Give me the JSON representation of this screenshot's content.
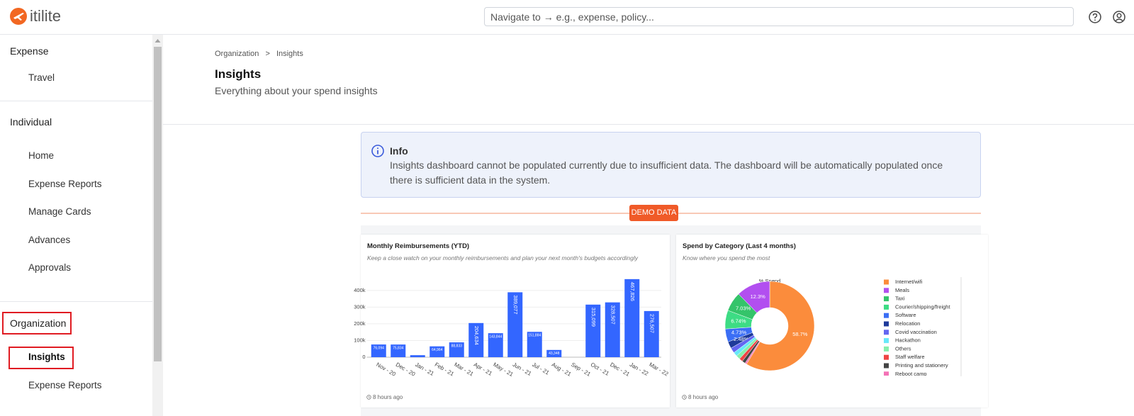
{
  "header": {
    "logo": "itilite",
    "search_placeholder": "Navigate to → e.g., expense, policy..."
  },
  "sidebar": {
    "sections": [
      {
        "title": "Expense",
        "items": [
          "Travel"
        ]
      },
      {
        "title": "Individual",
        "items": [
          "Home",
          "Expense Reports",
          "Manage Cards",
          "Advances",
          "Approvals"
        ]
      },
      {
        "title": "Organization",
        "items": [
          "Insights",
          "Expense Reports"
        ]
      }
    ]
  },
  "page": {
    "breadcrumb": [
      "Organization",
      "Insights"
    ],
    "breadcrumb_separator": ">",
    "title": "Insights",
    "subtitle": "Everything about your spend insights"
  },
  "info": {
    "title": "Info",
    "text": "Insights dashboard cannot be populated currently due to insufficient data. The dashboard will be automatically populated once there is sufficient data in the system."
  },
  "badge": "DEMO DATA",
  "chart_data": [
    {
      "type": "bar",
      "title": "Monthly Reimbursements (YTD)",
      "subtitle": "Keep a close watch on your monthly reimbursements and plan your next month's budgets accordingly",
      "footnote": "8 hours ago",
      "categories": [
        "Nov - 20",
        "Dec - 20",
        "Jan - 21",
        "Feb - 21",
        "Mar - 21",
        "Apr - 21",
        "May - 21",
        "Jun - 21",
        "Jul - 21",
        "Aug - 21",
        "Sep - 21",
        "Oct - 21",
        "Dec - 21",
        "Jan - 22",
        "Mar - 22"
      ],
      "values": [
        76094,
        75834,
        12000,
        64964,
        88833,
        204634,
        143844,
        389077,
        151884,
        43348,
        null,
        315099,
        328507,
        467826,
        276507
      ],
      "value_labels": [
        "76,094",
        "75,834",
        null,
        "64,964",
        "88,833",
        "204,634",
        "143,844",
        "389,077",
        "151,884",
        "43,348",
        null,
        "315,099",
        "328,507",
        "467,826",
        "276,507"
      ],
      "color": "#3366ff",
      "ylim": [
        0,
        480000
      ],
      "yticks": [
        0,
        {
          "value": 100000,
          "label": "100k"
        },
        {
          "value": 200000,
          "label": "200k"
        },
        {
          "value": 300000,
          "label": "300k"
        },
        {
          "value": 400000,
          "label": "400k"
        }
      ],
      "grid": true
    },
    {
      "type": "pie",
      "title": "Spend by Category (Last 4 months)",
      "subtitle": "Know where you spend the most",
      "label": "% Spend",
      "footnote": "8 hours ago",
      "categories": [
        "Internet/wifi",
        "Meals",
        "Taxi",
        "Courier/shipping/freight",
        "Software",
        "Relocation",
        "Covid vaccination",
        "Hackathon",
        "Others",
        "Staff welfare",
        "Printing and stationery",
        "Reboot camp"
      ],
      "values": [
        58.7,
        12.3,
        7.03,
        6.74,
        4.73,
        2.48,
        1.9,
        1.5,
        1.5,
        1.3,
        1.2,
        0.6
      ],
      "value_labels": [
        "58.7%",
        "12.3%",
        "7.03%",
        "6.74%",
        "4.73%",
        "2.48%",
        null,
        null,
        null,
        null,
        null,
        null
      ],
      "colors": [
        "#fb8c3c",
        "#b24ff0",
        "#34c46a",
        "#3ddc84",
        "#3b6ef5",
        "#1e3a9a",
        "#6366f1",
        "#67e8f9",
        "#86efac",
        "#ef4444",
        "#444444",
        "#f472b6"
      ],
      "donut": true
    }
  ]
}
